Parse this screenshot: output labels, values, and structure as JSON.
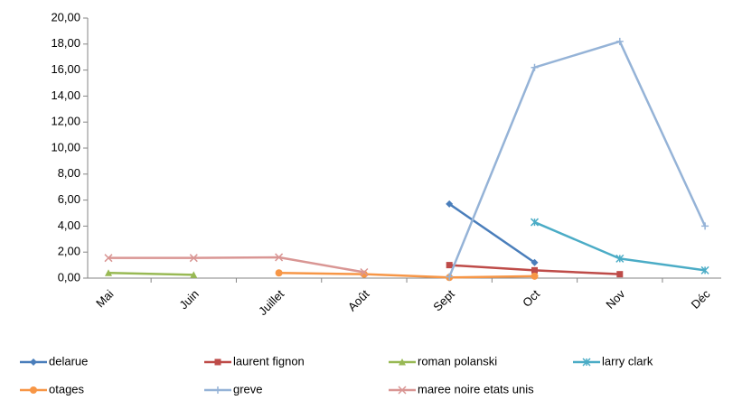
{
  "chart_data": {
    "type": "line",
    "categories": [
      "Mai",
      "Juin",
      "Juillet",
      "Août",
      "Sept",
      "Oct",
      "Nov",
      "Déc"
    ],
    "ylim": [
      0,
      20
    ],
    "yticks": [
      {
        "value": 0,
        "label": "0,00"
      },
      {
        "value": 2,
        "label": "2,00"
      },
      {
        "value": 4,
        "label": "4,00"
      },
      {
        "value": 6,
        "label": "6,00"
      },
      {
        "value": 8,
        "label": "8,00"
      },
      {
        "value": 10,
        "label": "10,00"
      },
      {
        "value": 12,
        "label": "12,00"
      },
      {
        "value": 14,
        "label": "14,00"
      },
      {
        "value": 16,
        "label": "16,00"
      },
      {
        "value": 18,
        "label": "18,00"
      },
      {
        "value": 20,
        "label": "20,00"
      }
    ],
    "grid": false,
    "legend": "bottom",
    "series": [
      {
        "name": "delarue",
        "color": "#4a7ebb",
        "marker": "diamond",
        "values": [
          null,
          null,
          null,
          null,
          5.7,
          1.2,
          null,
          null
        ]
      },
      {
        "name": "laurent fignon",
        "color": "#be4b48",
        "marker": "square",
        "values": [
          null,
          null,
          null,
          null,
          1.0,
          0.6,
          0.3,
          null
        ]
      },
      {
        "name": "roman polanski",
        "color": "#98b954",
        "marker": "triangle",
        "values": [
          0.4,
          0.25,
          null,
          null,
          null,
          null,
          null,
          null
        ]
      },
      {
        "name": "larry clark",
        "color": "#4bacc6",
        "marker": "star",
        "values": [
          null,
          null,
          null,
          null,
          null,
          4.3,
          1.5,
          0.6
        ]
      },
      {
        "name": "otages",
        "color": "#f79646",
        "marker": "circle",
        "values": [
          null,
          null,
          0.4,
          0.3,
          0.05,
          0.15,
          null,
          null
        ]
      },
      {
        "name": "greve",
        "color": "#95b3d7",
        "marker": "plus",
        "values": [
          null,
          null,
          null,
          null,
          0.1,
          16.2,
          18.2,
          4.0
        ]
      },
      {
        "name": "maree noire etats unis",
        "color": "#d99694",
        "marker": "x",
        "values": [
          1.55,
          1.55,
          1.6,
          0.45,
          null,
          null,
          null,
          null
        ]
      }
    ]
  }
}
